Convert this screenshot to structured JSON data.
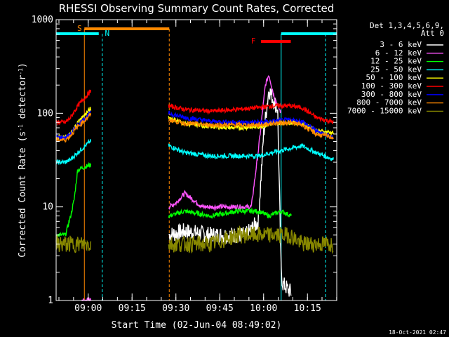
{
  "chart_data": {
    "type": "line",
    "title": "RHESSI Observing Summary Count Rates, Corrected",
    "xlabel": "Start Time (02-Jun-04 08:49:02)",
    "ylabel_main": "Corrected Count Rate (s",
    "ylabel_sup1": "-1",
    "ylabel_mid": " detector",
    "ylabel_sup2": "-1",
    "ylabel_end": ")",
    "yscale": "log",
    "ylim": [
      1,
      1000
    ],
    "xlim": [
      8.817,
      10.417
    ],
    "ytick_labels": [
      "1",
      "10",
      "100",
      "1000"
    ],
    "ytick_values": [
      1,
      10,
      100,
      1000
    ],
    "xtick_labels": [
      "09:00",
      "09:15",
      "09:30",
      "09:45",
      "10:00",
      "10:15"
    ],
    "xtick_values": [
      9.0,
      9.25,
      9.5,
      9.75,
      10.0,
      10.25
    ],
    "legend_header": [
      "Det 1,3,4,5,6,9,",
      "Att 0"
    ],
    "series": [
      {
        "name": "3 - 6 keV",
        "color": "#ffffff",
        "x": [
          8.817,
          8.95,
          9.01,
          9.46,
          9.55,
          9.7,
          9.9,
          9.97,
          10.0,
          10.03,
          10.08,
          10.1,
          10.11,
          10.16
        ],
        "y": [
          null,
          null,
          null,
          5,
          5.5,
          5,
          5,
          7,
          60,
          180,
          110,
          2,
          1.5,
          1.2
        ]
      },
      {
        "name": "6 - 12 keV",
        "color": "#ff55ff",
        "x": [
          8.8,
          8.94,
          8.96,
          9.01,
          9.46,
          9.5,
          9.55,
          9.65,
          9.8,
          9.93,
          9.97,
          10.01,
          10.03,
          10.06,
          10.1,
          10.1
        ],
        "y": [
          null,
          null,
          1,
          1,
          10,
          11,
          14,
          10,
          10,
          10,
          40,
          200,
          260,
          150,
          100,
          1
        ]
      },
      {
        "name": "12 - 25 keV",
        "color": "#00ff00",
        "x": [
          8.817,
          8.87,
          8.9,
          8.92,
          8.94,
          9.01,
          9.46,
          9.55,
          9.7,
          9.85,
          9.97,
          10.03,
          10.1,
          10.16
        ],
        "y": [
          5,
          5,
          8,
          12,
          25,
          28,
          8,
          9,
          8,
          9,
          9,
          8,
          9,
          8
        ]
      },
      {
        "name": "25 - 50 keV",
        "color": "#00ffff",
        "x": [
          8.817,
          8.87,
          8.9,
          8.94,
          9.01,
          9.46,
          9.55,
          9.7,
          9.85,
          9.97,
          10.05,
          10.15,
          10.22,
          10.3,
          10.4
        ],
        "y": [
          30,
          30,
          32,
          38,
          50,
          45,
          38,
          35,
          35,
          35,
          38,
          42,
          45,
          38,
          32
        ]
      },
      {
        "name": "50 - 100 keV",
        "color": "#ffff00",
        "x": [
          8.817,
          8.87,
          8.9,
          8.94,
          9.01,
          9.46,
          9.55,
          9.7,
          9.85,
          9.97,
          10.05,
          10.15,
          10.22,
          10.3,
          10.4
        ],
        "y": [
          55,
          55,
          60,
          80,
          110,
          90,
          78,
          72,
          70,
          72,
          78,
          80,
          78,
          65,
          62
        ]
      },
      {
        "name": "100 - 300 keV",
        "color": "#ff0000",
        "x": [
          8.817,
          8.87,
          8.9,
          8.94,
          9.01,
          9.46,
          9.55,
          9.7,
          9.85,
          9.97,
          10.05,
          10.15,
          10.22,
          10.3,
          10.4
        ],
        "y": [
          80,
          80,
          90,
          120,
          170,
          120,
          110,
          105,
          110,
          115,
          120,
          120,
          115,
          90,
          80
        ]
      },
      {
        "name": "300 - 800 keV",
        "color": "#0000ff",
        "x": [
          8.817,
          8.87,
          8.9,
          8.94,
          9.01,
          9.46,
          9.55,
          9.7,
          9.85,
          9.97,
          10.05,
          10.15,
          10.22,
          10.3,
          10.4
        ],
        "y": [
          55,
          55,
          60,
          75,
          100,
          100,
          90,
          82,
          80,
          80,
          82,
          85,
          82,
          65,
          55
        ]
      },
      {
        "name": "800 - 7000 keV",
        "color": "#ff8800",
        "x": [
          8.817,
          8.87,
          8.9,
          8.94,
          9.01,
          9.46,
          9.55,
          9.7,
          9.85,
          9.97,
          10.05,
          10.15,
          10.22,
          10.3,
          10.4
        ],
        "y": [
          52,
          52,
          58,
          72,
          95,
          85,
          78,
          75,
          75,
          75,
          78,
          80,
          75,
          60,
          55
        ]
      },
      {
        "name": "7000 - 15000 keV",
        "color": "#888800",
        "x": [
          8.817,
          8.87,
          8.9,
          8.92,
          8.94,
          9.01,
          9.46,
          9.55,
          9.7,
          9.85,
          9.97,
          10.05,
          10.15,
          10.22,
          10.3,
          10.4
        ],
        "y": [
          4,
          4,
          4,
          4,
          4,
          4,
          4,
          4,
          4,
          5,
          5,
          5,
          5,
          4,
          4,
          4
        ]
      }
    ],
    "annotations": [
      {
        "label": "S",
        "color": "#ff8800",
        "x_start": 8.978,
        "x_end": 9.462
      },
      {
        "label": "N",
        "color": "#00ffff",
        "x_start": 9.06,
        "x_end": 9.06
      },
      {
        "label": "F",
        "color": "#ff0000",
        "x_start": 9.985,
        "x_end": 10.155
      }
    ],
    "timestamp": "18-Oct-2021 02:47"
  }
}
